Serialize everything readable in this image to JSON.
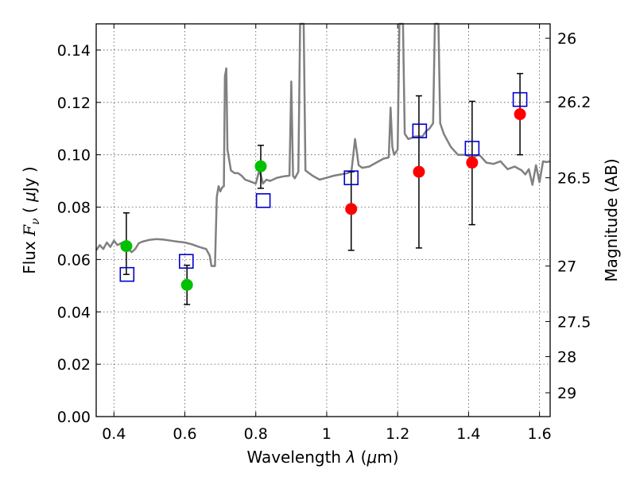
{
  "chart_data": {
    "type": "scatter",
    "title": "",
    "xlabel": "Wavelength  λ (μm)",
    "ylabel": "Flux  F_ν  ( μJy )",
    "ylabel_parts": {
      "pre": "Flux  ",
      "sym": "F",
      "sub": "ν",
      "mid": "  ( ",
      "mu": "μ",
      "unit": "Jy )"
    },
    "xlabel_parts": {
      "pre": "Wavelength  ",
      "lam": "λ",
      "open": " (",
      "mu": "μ",
      "unit": "m)"
    },
    "y2label": "Magnitude (AB)",
    "xlim": [
      0.35,
      1.63
    ],
    "ylim": [
      0.0,
      0.15
    ],
    "grid": true,
    "x_ticks": [
      {
        "value": 0.4,
        "label": "0.4"
      },
      {
        "value": 0.6,
        "label": "0.6"
      },
      {
        "value": 0.8,
        "label": "0.8"
      },
      {
        "value": 1.0,
        "label": "1"
      },
      {
        "value": 1.2,
        "label": "1.2"
      },
      {
        "value": 1.4,
        "label": "1.4"
      },
      {
        "value": 1.6,
        "label": "1.6"
      }
    ],
    "y_ticks": [
      {
        "value": 0.0,
        "label": "0.00"
      },
      {
        "value": 0.02,
        "label": "0.02"
      },
      {
        "value": 0.04,
        "label": "0.04"
      },
      {
        "value": 0.06,
        "label": "0.06"
      },
      {
        "value": 0.08,
        "label": "0.08"
      },
      {
        "value": 0.1,
        "label": "0.10"
      },
      {
        "value": 0.12,
        "label": "0.12"
      },
      {
        "value": 0.14,
        "label": "0.14"
      }
    ],
    "y2_ticks": [
      {
        "flux": 0.1445,
        "label": "26"
      },
      {
        "flux": 0.1202,
        "label": "26.2"
      },
      {
        "flux": 0.0912,
        "label": "26.5"
      },
      {
        "flux": 0.0575,
        "label": "27"
      },
      {
        "flux": 0.0363,
        "label": "27.5"
      },
      {
        "flux": 0.0229,
        "label": "28"
      },
      {
        "flux": 0.0091,
        "label": "29"
      }
    ],
    "series": [
      {
        "marker": "circle",
        "color": "#00c000",
        "points": [
          {
            "x": 0.435,
            "y": 0.0651,
            "yerr_low": 0.0543,
            "yerr_high": 0.0778
          },
          {
            "x": 0.606,
            "y": 0.0503,
            "yerr_low": 0.0428,
            "yerr_high": 0.0578
          },
          {
            "x": 0.814,
            "y": 0.0956,
            "yerr_low": 0.0872,
            "yerr_high": 0.1036
          }
        ]
      },
      {
        "marker": "circle",
        "color": "#ff0000",
        "points": [
          {
            "x": 1.069,
            "y": 0.0793,
            "yerr_low": 0.0635,
            "yerr_high": 0.0935
          },
          {
            "x": 1.26,
            "y": 0.0935,
            "yerr_low": 0.0644,
            "yerr_high": 0.1225
          },
          {
            "x": 1.41,
            "y": 0.097,
            "yerr_low": 0.0733,
            "yerr_high": 0.1204
          },
          {
            "x": 1.545,
            "y": 0.1155,
            "yerr_low": 0.1,
            "yerr_high": 0.131
          }
        ]
      },
      {
        "marker": "open-square",
        "color": "#0000cc",
        "points": [
          {
            "x": 0.437,
            "y": 0.0543
          },
          {
            "x": 0.604,
            "y": 0.0593
          },
          {
            "x": 0.821,
            "y": 0.0825
          },
          {
            "x": 1.069,
            "y": 0.0912
          },
          {
            "x": 1.262,
            "y": 0.1091
          },
          {
            "x": 1.41,
            "y": 0.1025
          },
          {
            "x": 1.545,
            "y": 0.1211
          }
        ]
      }
    ],
    "template_spectrum": {
      "color": "#808080",
      "points": [
        [
          0.35,
          0.0635
        ],
        [
          0.36,
          0.0655
        ],
        [
          0.37,
          0.064
        ],
        [
          0.38,
          0.0665
        ],
        [
          0.39,
          0.0648
        ],
        [
          0.4,
          0.0672
        ],
        [
          0.41,
          0.0655
        ],
        [
          0.42,
          0.0662
        ],
        [
          0.43,
          0.0668
        ],
        [
          0.44,
          0.0642
        ],
        [
          0.45,
          0.0628
        ],
        [
          0.46,
          0.064
        ],
        [
          0.47,
          0.0662
        ],
        [
          0.48,
          0.0668
        ],
        [
          0.5,
          0.0675
        ],
        [
          0.52,
          0.0678
        ],
        [
          0.54,
          0.0676
        ],
        [
          0.56,
          0.0672
        ],
        [
          0.58,
          0.0668
        ],
        [
          0.6,
          0.0665
        ],
        [
          0.62,
          0.0658
        ],
        [
          0.64,
          0.0648
        ],
        [
          0.66,
          0.064
        ],
        [
          0.67,
          0.0615
        ],
        [
          0.675,
          0.0575
        ],
        [
          0.685,
          0.0575
        ],
        [
          0.69,
          0.084
        ],
        [
          0.695,
          0.088
        ],
        [
          0.7,
          0.086
        ],
        [
          0.705,
          0.0875
        ],
        [
          0.71,
          0.088
        ],
        [
          0.713,
          0.13
        ],
        [
          0.717,
          0.133
        ],
        [
          0.72,
          0.102
        ],
        [
          0.73,
          0.094
        ],
        [
          0.74,
          0.093
        ],
        [
          0.75,
          0.093
        ],
        [
          0.76,
          0.092
        ],
        [
          0.77,
          0.0905
        ],
        [
          0.78,
          0.09
        ],
        [
          0.79,
          0.0895
        ],
        [
          0.8,
          0.089
        ],
        [
          0.81,
          0.094
        ],
        [
          0.815,
          0.092
        ],
        [
          0.82,
          0.089
        ],
        [
          0.83,
          0.0905
        ],
        [
          0.84,
          0.09
        ],
        [
          0.86,
          0.0912
        ],
        [
          0.88,
          0.0918
        ],
        [
          0.895,
          0.092
        ],
        [
          0.9,
          0.128
        ],
        [
          0.905,
          0.092
        ],
        [
          0.91,
          0.091
        ],
        [
          0.92,
          0.0935
        ],
        [
          0.925,
          0.15
        ],
        [
          0.935,
          0.15
        ],
        [
          0.94,
          0.094
        ],
        [
          0.96,
          0.092
        ],
        [
          0.98,
          0.0905
        ],
        [
          1.0,
          0.0912
        ],
        [
          1.02,
          0.092
        ],
        [
          1.04,
          0.0925
        ],
        [
          1.06,
          0.093
        ],
        [
          1.07,
          0.094
        ],
        [
          1.08,
          0.106
        ],
        [
          1.085,
          0.101
        ],
        [
          1.09,
          0.096
        ],
        [
          1.1,
          0.095
        ],
        [
          1.12,
          0.0955
        ],
        [
          1.14,
          0.097
        ],
        [
          1.16,
          0.0985
        ],
        [
          1.175,
          0.099
        ],
        [
          1.18,
          0.118
        ],
        [
          1.185,
          0.103
        ],
        [
          1.19,
          0.1
        ],
        [
          1.2,
          0.102
        ],
        [
          1.205,
          0.15
        ],
        [
          1.215,
          0.15
        ],
        [
          1.22,
          0.108
        ],
        [
          1.23,
          0.106
        ],
        [
          1.25,
          0.107
        ],
        [
          1.27,
          0.107
        ],
        [
          1.28,
          0.109
        ],
        [
          1.29,
          0.11
        ],
        [
          1.3,
          0.112
        ],
        [
          1.305,
          0.15
        ],
        [
          1.315,
          0.15
        ],
        [
          1.32,
          0.112
        ],
        [
          1.33,
          0.108
        ],
        [
          1.35,
          0.103
        ],
        [
          1.37,
          0.1
        ],
        [
          1.39,
          0.1
        ],
        [
          1.41,
          0.099
        ],
        [
          1.43,
          0.1
        ],
        [
          1.45,
          0.097
        ],
        [
          1.47,
          0.0965
        ],
        [
          1.49,
          0.0975
        ],
        [
          1.51,
          0.0945
        ],
        [
          1.53,
          0.0955
        ],
        [
          1.55,
          0.094
        ],
        [
          1.56,
          0.0925
        ],
        [
          1.57,
          0.0945
        ],
        [
          1.58,
          0.0885
        ],
        [
          1.59,
          0.096
        ],
        [
          1.6,
          0.0895
        ],
        [
          1.61,
          0.0975
        ],
        [
          1.62,
          0.0972
        ],
        [
          1.63,
          0.0975
        ]
      ]
    }
  }
}
